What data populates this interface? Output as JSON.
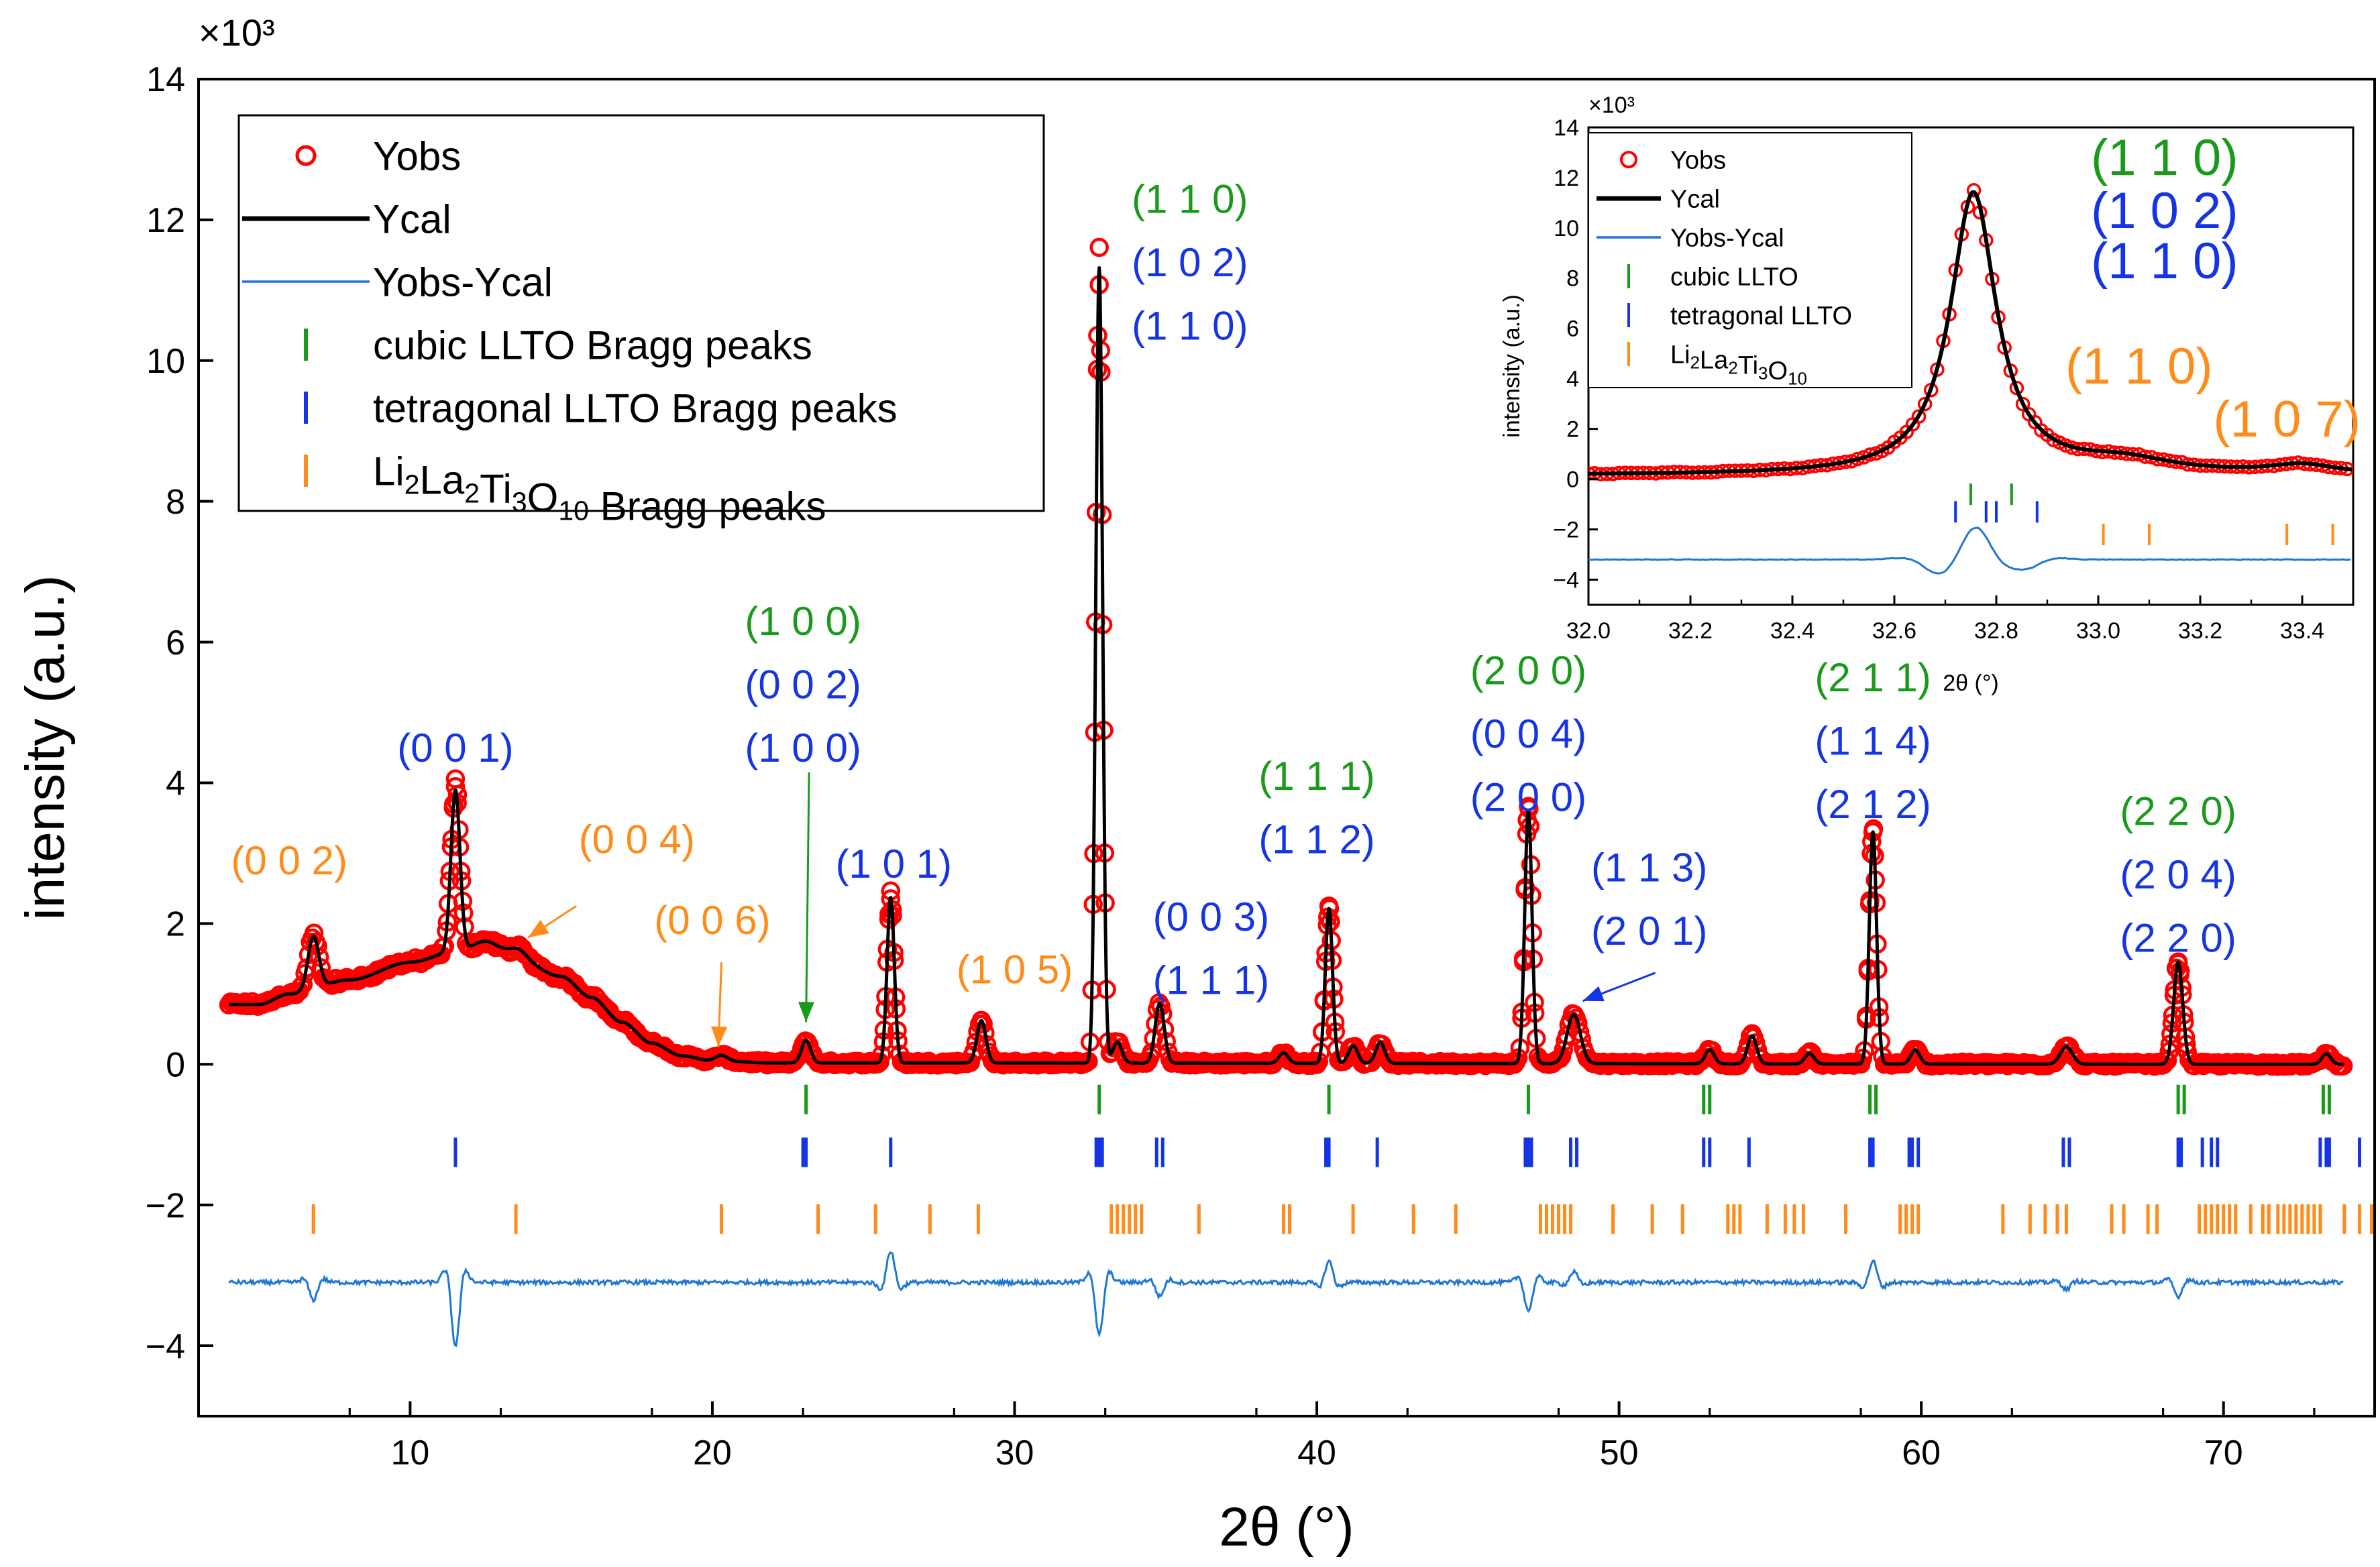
{
  "colors": {
    "obs": "#ff0000",
    "calc": "#000000",
    "diff": "#1f77d4",
    "cubic": "#1a9a1a",
    "tetragonal": "#1434e6",
    "li2la2": "#ff8c1a",
    "axis": "#000000"
  },
  "chart_data": [
    {
      "type": "line",
      "role": "main",
      "xlabel": "2θ (°)",
      "ylabel": "intensity (a.u.)",
      "multiplier": "×10³",
      "xlim": [
        3,
        75
      ],
      "ylim": [
        -5,
        14
      ],
      "xticks": [
        10,
        20,
        30,
        40,
        50,
        60,
        70
      ],
      "xtick_labels": [
        "10",
        "20",
        "30",
        "40",
        "50",
        "60",
        "70"
      ],
      "yticks": [
        -4,
        -2,
        0,
        2,
        4,
        6,
        8,
        10,
        12,
        14
      ],
      "ytick_labels": [
        "−4",
        "−2",
        "0",
        "2",
        "4",
        "6",
        "8",
        "10",
        "12",
        "14"
      ],
      "legend": {
        "placement": "top-left",
        "entries": [
          {
            "label": "Yobs",
            "kind": "circle",
            "color": "#ff0000"
          },
          {
            "label": "Ycal",
            "kind": "line",
            "color": "#000000"
          },
          {
            "label": "Yobs-Ycal",
            "kind": "thinline",
            "color": "#1f77d4"
          },
          {
            "label": "cubic LLTO Bragg peaks",
            "kind": "tick",
            "color": "#1a9a1a"
          },
          {
            "label": "tetragonal LLTO Bragg peaks",
            "kind": "tick",
            "color": "#1434e6"
          },
          {
            "label": "Li2La2Ti3O10 Bragg peaks",
            "kind": "tick",
            "color": "#ff8c1a"
          }
        ]
      },
      "background": [
        [
          4,
          0.85
        ],
        [
          5,
          0.85
        ],
        [
          6,
          1.0
        ],
        [
          8,
          1.2
        ],
        [
          10,
          1.45
        ],
        [
          11.5,
          1.6
        ],
        [
          12.5,
          1.75
        ],
        [
          13.5,
          1.5
        ],
        [
          15,
          1.25
        ],
        [
          16,
          0.95
        ],
        [
          17,
          0.6
        ],
        [
          18,
          0.3
        ],
        [
          19,
          0.12
        ],
        [
          20,
          0.05
        ],
        [
          22,
          0.02
        ],
        [
          74,
          0.0
        ]
      ],
      "peaks": [
        {
          "x": 6.8,
          "h": 0.75,
          "w": 0.18
        },
        {
          "x": 11.5,
          "h": 2.3,
          "w": 0.15
        },
        {
          "x": 13.5,
          "h": 0.15,
          "w": 0.3
        },
        {
          "x": 20.3,
          "h": 0.08,
          "w": 0.2
        },
        {
          "x": 23.1,
          "h": 0.32,
          "w": 0.15
        },
        {
          "x": 25.9,
          "h": 2.35,
          "w": 0.12
        },
        {
          "x": 28.9,
          "h": 0.6,
          "w": 0.15
        },
        {
          "x": 32.8,
          "h": 11.3,
          "w": 0.11
        },
        {
          "x": 33.4,
          "h": 0.3,
          "w": 0.15
        },
        {
          "x": 34.8,
          "h": 0.85,
          "w": 0.15
        },
        {
          "x": 38.9,
          "h": 0.15,
          "w": 0.15
        },
        {
          "x": 40.4,
          "h": 2.2,
          "w": 0.12
        },
        {
          "x": 41.2,
          "h": 0.25,
          "w": 0.15
        },
        {
          "x": 42.1,
          "h": 0.3,
          "w": 0.15
        },
        {
          "x": 47.0,
          "h": 3.6,
          "w": 0.12
        },
        {
          "x": 48.5,
          "h": 0.7,
          "w": 0.22
        },
        {
          "x": 53.0,
          "h": 0.2,
          "w": 0.15
        },
        {
          "x": 54.4,
          "h": 0.4,
          "w": 0.15
        },
        {
          "x": 56.3,
          "h": 0.15,
          "w": 0.15
        },
        {
          "x": 58.4,
          "h": 3.3,
          "w": 0.12
        },
        {
          "x": 59.8,
          "h": 0.2,
          "w": 0.15
        },
        {
          "x": 64.8,
          "h": 0.25,
          "w": 0.2
        },
        {
          "x": 68.5,
          "h": 1.45,
          "w": 0.15
        },
        {
          "x": 73.4,
          "h": 0.15,
          "w": 0.15
        }
      ],
      "bragg": {
        "cubic": {
          "y": -0.5,
          "x": [
            23.1,
            32.8,
            40.4,
            47.0,
            52.8,
            53.0,
            58.3,
            58.5,
            68.5,
            68.7,
            73.3,
            73.5
          ]
        },
        "tetragonal": {
          "y": -1.25,
          "x": [
            11.5,
            23.0,
            23.1,
            25.9,
            32.7,
            32.8,
            32.9,
            34.7,
            34.9,
            40.3,
            40.4,
            42.0,
            46.9,
            47.0,
            47.1,
            48.4,
            48.6,
            52.8,
            53.0,
            54.3,
            58.3,
            58.4,
            59.6,
            59.7,
            59.9,
            64.7,
            64.9,
            68.5,
            68.6,
            69.3,
            69.6,
            69.8,
            73.2,
            73.4,
            73.5,
            74.5
          ]
        },
        "li2la2": {
          "y": -2.2,
          "x": [
            6.8,
            13.5,
            20.3,
            23.5,
            25.4,
            27.2,
            28.8,
            33.2,
            33.4,
            33.6,
            33.8,
            34.0,
            34.2,
            36.1,
            38.9,
            39.1,
            41.2,
            43.2,
            44.6,
            47.4,
            47.6,
            47.8,
            48.0,
            48.2,
            48.4,
            49.8,
            51.1,
            52.1,
            53.6,
            53.8,
            54.0,
            54.9,
            55.5,
            55.8,
            56.1,
            57.5,
            59.3,
            59.5,
            59.7,
            59.9,
            62.7,
            63.6,
            64.1,
            64.5,
            64.8,
            66.3,
            66.7,
            67.5,
            67.8,
            69.2,
            69.4,
            69.6,
            69.8,
            70.0,
            70.2,
            70.4,
            70.9,
            71.3,
            71.5,
            71.8,
            72.0,
            72.2,
            72.4,
            72.6,
            72.8,
            73.0,
            73.2,
            74.0,
            74.5,
            74.9
          ]
        }
      },
      "diff_offset": -3.1,
      "diff_features": [
        {
          "x": 6.8,
          "a": -0.25
        },
        {
          "x": 11.5,
          "a": -0.9
        },
        {
          "x": 25.9,
          "a": 0.45
        },
        {
          "x": 32.8,
          "a": -0.75
        },
        {
          "x": 34.8,
          "a": -0.2
        },
        {
          "x": 40.4,
          "a": 0.3
        },
        {
          "x": 47.0,
          "a": -0.4
        },
        {
          "x": 48.5,
          "a": 0.15
        },
        {
          "x": 58.4,
          "a": 0.3
        },
        {
          "x": 64.8,
          "a": -0.1
        },
        {
          "x": 68.5,
          "a": -0.2
        }
      ],
      "annotations": [
        {
          "text": "(0 0 2)",
          "color": "#ff8c1a",
          "x": 6.0,
          "y": 2.7
        },
        {
          "text": "(0 0 1)",
          "color": "#1434e6",
          "x": 11.5,
          "y": 4.3
        },
        {
          "text": "(0 0 4)",
          "color": "#ff8c1a",
          "x": 17.5,
          "y": 3.0
        },
        {
          "text": "(0 0 6)",
          "color": "#ff8c1a",
          "x": 20.0,
          "y": 1.85
        },
        {
          "text": "(1 0 0)",
          "color": "#1a9a1a",
          "x": 23.0,
          "y": 6.1
        },
        {
          "text": "(0 0 2)",
          "color": "#1434e6",
          "x": 23.0,
          "y": 5.2
        },
        {
          "text": "(1 0 0)",
          "color": "#1434e6",
          "x": 23.0,
          "y": 4.3
        },
        {
          "text": "(1 0 1)",
          "color": "#1434e6",
          "x": 26.0,
          "y": 2.65
        },
        {
          "text": "(1 0 5)",
          "color": "#ff8c1a",
          "x": 30.0,
          "y": 1.15
        },
        {
          "text": "(1 1 0)",
          "color": "#1a9a1a",
          "x": 35.8,
          "y": 12.1
        },
        {
          "text": "(1 0 2)",
          "color": "#1434e6",
          "x": 35.8,
          "y": 11.2
        },
        {
          "text": "(1 1 0)",
          "color": "#1434e6",
          "x": 35.8,
          "y": 10.3
        },
        {
          "text": "(0 0 3)",
          "color": "#1434e6",
          "x": 36.5,
          "y": 1.9
        },
        {
          "text": "(1 1 1)",
          "color": "#1434e6",
          "x": 36.5,
          "y": 1.0
        },
        {
          "text": "(1 1 1)",
          "color": "#1a9a1a",
          "x": 40.0,
          "y": 3.9
        },
        {
          "text": "(1 1 2)",
          "color": "#1434e6",
          "x": 40.0,
          "y": 3.0
        },
        {
          "text": "(2 0 0)",
          "color": "#1a9a1a",
          "x": 47.0,
          "y": 5.4
        },
        {
          "text": "(0 0 4)",
          "color": "#1434e6",
          "x": 47.0,
          "y": 4.5
        },
        {
          "text": "(2 0 0)",
          "color": "#1434e6",
          "x": 47.0,
          "y": 3.6
        },
        {
          "text": "(1 1 3)",
          "color": "#1434e6",
          "x": 51.0,
          "y": 2.6
        },
        {
          "text": "(2 0 1)",
          "color": "#1434e6",
          "x": 51.0,
          "y": 1.7
        },
        {
          "text": "(2 1 1)",
          "color": "#1a9a1a",
          "x": 58.4,
          "y": 5.3
        },
        {
          "text": "(1 1 4)",
          "color": "#1434e6",
          "x": 58.4,
          "y": 4.4
        },
        {
          "text": "(2 1 2)",
          "color": "#1434e6",
          "x": 58.4,
          "y": 3.5
        },
        {
          "text": "(2 2 0)",
          "color": "#1a9a1a",
          "x": 68.5,
          "y": 3.4
        },
        {
          "text": "(2 0 4)",
          "color": "#1434e6",
          "x": 68.5,
          "y": 2.5
        },
        {
          "text": "(2 2 0)",
          "color": "#1434e6",
          "x": 68.5,
          "y": 1.6
        }
      ],
      "arrows": [
        {
          "from": [
            15.5,
            2.25
          ],
          "to": [
            13.9,
            1.8
          ],
          "color": "#ff8c1a"
        },
        {
          "from": [
            20.3,
            1.45
          ],
          "to": [
            20.2,
            0.25
          ],
          "color": "#ff8c1a"
        },
        {
          "from": [
            23.2,
            4.15
          ],
          "to": [
            23.1,
            0.6
          ],
          "color": "#1a9a1a"
        },
        {
          "from": [
            51.2,
            1.3
          ],
          "to": [
            48.8,
            0.9
          ],
          "color": "#1434e6"
        }
      ]
    },
    {
      "type": "line",
      "role": "inset",
      "xlabel": "2θ (°)",
      "ylabel": "intensity (a.u.)",
      "multiplier": "×10³",
      "xlim": [
        32.0,
        33.5
      ],
      "ylim": [
        -5,
        14
      ],
      "xticks": [
        32.0,
        32.2,
        32.4,
        32.6,
        32.8,
        33.0,
        33.2,
        33.4
      ],
      "xtick_labels": [
        "32.0",
        "32.2",
        "32.4",
        "32.6",
        "32.8",
        "33.0",
        "33.2",
        "33.4"
      ],
      "yticks": [
        -4,
        -2,
        0,
        2,
        4,
        6,
        8,
        10,
        12,
        14
      ],
      "ytick_labels": [
        "−4",
        "−2",
        "0",
        "2",
        "4",
        "6",
        "8",
        "10",
        "12",
        "14"
      ],
      "legend": {
        "placement": "top-left",
        "entries": [
          {
            "label": "Yobs",
            "kind": "circle",
            "color": "#ff0000"
          },
          {
            "label": "Ycal",
            "kind": "line",
            "color": "#000000"
          },
          {
            "label": "Yobs-Ycal",
            "kind": "thinline",
            "color": "#1f77d4"
          },
          {
            "label": "cubic LLTO",
            "kind": "tick",
            "color": "#1a9a1a"
          },
          {
            "label": "tetragonal LLTO",
            "kind": "tick",
            "color": "#1434e6"
          },
          {
            "label": "Li2La2Ti3O10",
            "kind": "tick",
            "color": "#ff8c1a"
          }
        ]
      },
      "peaks": [
        {
          "x": 32.755,
          "h": 11.2,
          "w": 0.055
        },
        {
          "x": 33.05,
          "h": 0.5,
          "w": 0.12
        },
        {
          "x": 33.4,
          "h": 0.35,
          "w": 0.08
        }
      ],
      "base": 0.15,
      "bragg": {
        "cubic": {
          "y": -0.6,
          "x": [
            32.75,
            32.83
          ]
        },
        "tetragonal": {
          "y": -1.3,
          "x": [
            32.72,
            32.78,
            32.8,
            32.88
          ]
        },
        "li2la2": {
          "y": -2.2,
          "x": [
            33.01,
            33.1,
            33.37,
            33.46
          ]
        }
      },
      "diff_offset": -3.2,
      "diff_features": [
        {
          "x": 32.68,
          "a": -0.35
        },
        {
          "x": 32.76,
          "a": 1.2
        },
        {
          "x": 32.86,
          "a": -0.3
        }
      ],
      "annotations": [
        {
          "text": "(1 1 0)",
          "color": "#1a9a1a",
          "x": 33.13,
          "y": 12.1
        },
        {
          "text": "(1 0 2)",
          "color": "#1434e6",
          "x": 33.13,
          "y": 10.0
        },
        {
          "text": "(1 1 0)",
          "color": "#1434e6",
          "x": 33.13,
          "y": 8.0
        },
        {
          "text": "(1 1 0)",
          "color": "#ff8c1a",
          "x": 33.08,
          "y": 3.8
        },
        {
          "text": "(1 0 7)",
          "color": "#ff8c1a",
          "x": 33.37,
          "y": 1.7
        }
      ]
    }
  ]
}
